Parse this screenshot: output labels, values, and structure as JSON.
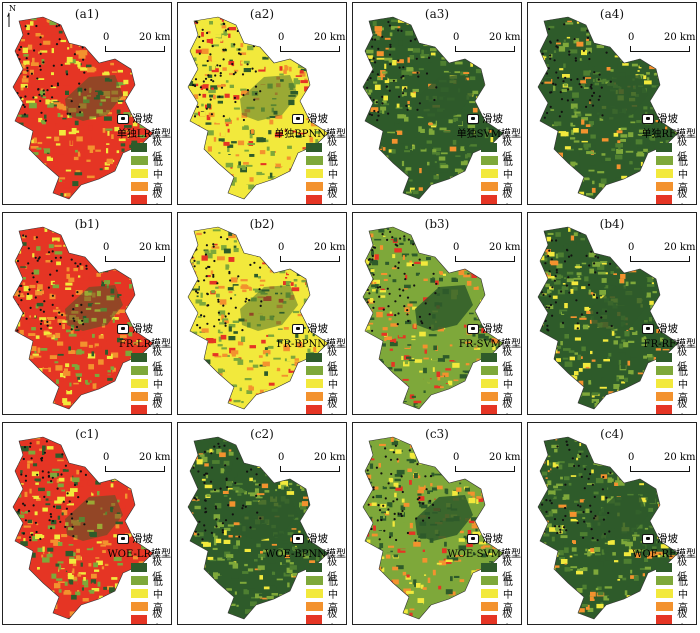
{
  "north_label": "N",
  "scale": {
    "start": "0",
    "end": "20 km"
  },
  "landslide_label": "滑坡",
  "legend": [
    {
      "label": "极低",
      "color": "#2e5b2a"
    },
    {
      "label": "低",
      "color": "#7ea83a"
    },
    {
      "label": "中",
      "color": "#f2e93c"
    },
    {
      "label": "高",
      "color": "#f3922e"
    },
    {
      "label": "极高",
      "color": "#e53524"
    }
  ],
  "panels": [
    {
      "id": "(a1)",
      "model": "单独LR模型",
      "dominant": "red"
    },
    {
      "id": "(a2)",
      "model": "单独BPNN模型",
      "dominant": "yellow"
    },
    {
      "id": "(a3)",
      "model": "单独SVM模型",
      "dominant": "green"
    },
    {
      "id": "(a4)",
      "model": "单独RF模型",
      "dominant": "green"
    },
    {
      "id": "(b1)",
      "model": "FR-LR模型",
      "dominant": "red"
    },
    {
      "id": "(b2)",
      "model": "FR-BPNN模型",
      "dominant": "yellow"
    },
    {
      "id": "(b3)",
      "model": "FR-SVM模型",
      "dominant": "mixed"
    },
    {
      "id": "(b4)",
      "model": "FR-RF模型",
      "dominant": "green"
    },
    {
      "id": "(c1)",
      "model": "WOE-LR模型",
      "dominant": "red"
    },
    {
      "id": "(c2)",
      "model": "WOE-BPNN模型",
      "dominant": "green"
    },
    {
      "id": "(c3)",
      "model": "WOE-SVM模型",
      "dominant": "mixed"
    },
    {
      "id": "(c4)",
      "model": "WOE-RF模型",
      "dominant": "green"
    }
  ]
}
